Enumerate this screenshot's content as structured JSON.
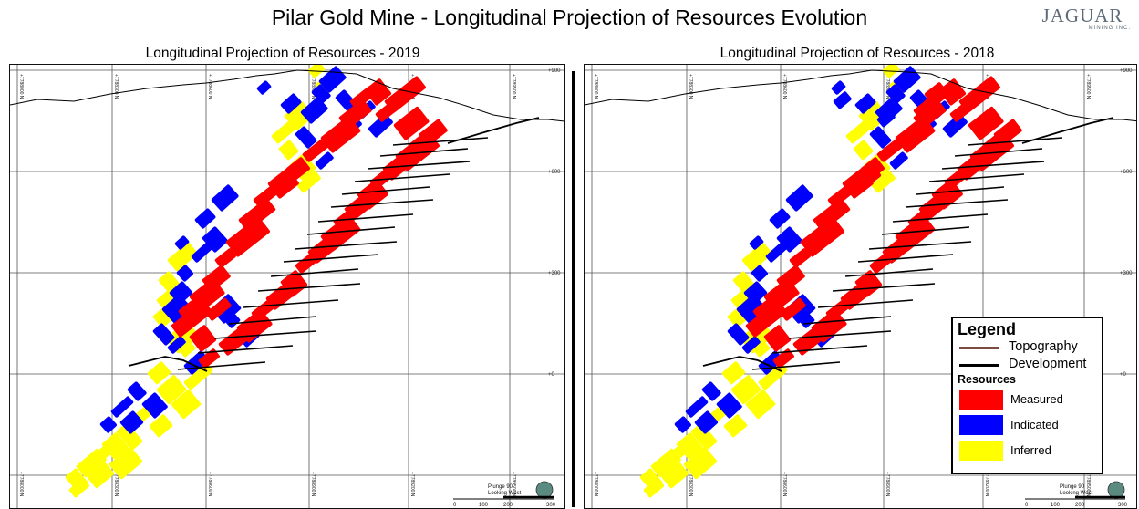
{
  "title": "Pilar Gold Mine - Longitudinal Projection of Resources Evolution",
  "logo": {
    "word": "JAGUAR",
    "sub": "MINING INC."
  },
  "colors": {
    "measured": "#ff0000",
    "indicated": "#0000ff",
    "inferred": "#ffff00",
    "topography": "#7b4a40",
    "development": "#000000"
  },
  "panels": [
    {
      "title": "Longitudinal Projection of Resources - 2019",
      "northings": [
        "+7788000 N",
        "+7788300 N",
        "+7788600 N",
        "+7788900 N",
        "+7789200 N",
        "+7789500 N"
      ],
      "elevations": [
        "+900",
        "+600",
        "+300",
        "+0"
      ],
      "plunge": {
        "line1": "Plunge 90",
        "line2": "Looking West"
      },
      "scale": [
        "0",
        "100",
        "200",
        "300"
      ]
    },
    {
      "title": "Longitudinal Projection of Resources - 2018",
      "northings": [
        "+7788000 N",
        "+7788300 N",
        "+7788600 N",
        "+7788900 N",
        "+7789200 N",
        "+7789500 N"
      ],
      "elevations": [
        "+900",
        "+600",
        "+300",
        "+0"
      ],
      "plunge": {
        "line1": "Plunge 90",
        "line2": "Looking West"
      },
      "scale": [
        "0",
        "100",
        "200",
        "300"
      ]
    }
  ],
  "legend": {
    "title": "Legend",
    "lines": [
      {
        "label": "Topography",
        "color_key": "topography"
      },
      {
        "label": "Development",
        "color_key": "development"
      }
    ],
    "resources_heading": "Resources",
    "boxes": [
      {
        "label": "Measured",
        "color_key": "measured"
      },
      {
        "label": "Indicated",
        "color_key": "indicated"
      },
      {
        "label": "Inferred",
        "color_key": "inferred"
      }
    ]
  }
}
